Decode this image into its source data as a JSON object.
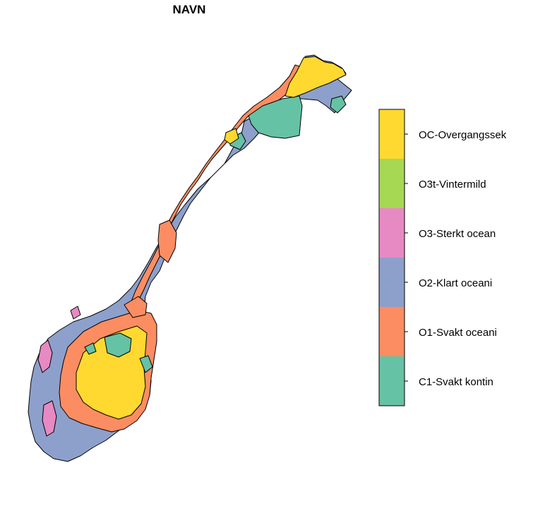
{
  "map": {
    "title": "NAVN",
    "legend": {
      "placement": "right",
      "entries": [
        {
          "label": "OC-Overgangssek",
          "color": "#FFD92F"
        },
        {
          "label": "O3t-Vintermild",
          "color": "#A6D854"
        },
        {
          "label": "O3-Sterkt ocean",
          "color": "#E78AC3"
        },
        {
          "label": "O2-Klart oceani",
          "color": "#8DA0CB"
        },
        {
          "label": "O1-Svakt oceani",
          "color": "#FC8D62"
        },
        {
          "label": "C1-Svakt kontin",
          "color": "#66C2A5"
        }
      ]
    }
  }
}
